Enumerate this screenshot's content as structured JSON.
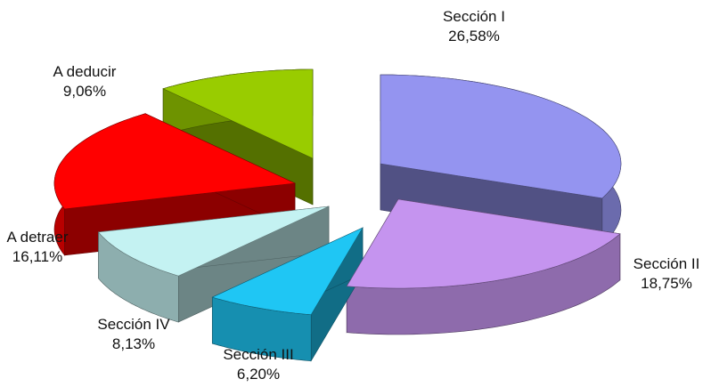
{
  "chart_data": {
    "type": "pie",
    "style": "3d-exploded",
    "slices": [
      {
        "name": "Sección I",
        "value_label": "26,58%",
        "value": 26.58,
        "color": "#9494f0"
      },
      {
        "name": "Sección II",
        "value_label": "18,75%",
        "value": 18.75,
        "color": "#c594ef"
      },
      {
        "name": "Sección III",
        "value_label": "6,20%",
        "value": 6.2,
        "color": "#1fc6f4"
      },
      {
        "name": "Sección IV",
        "value_label": "8,13%",
        "value": 8.13,
        "color": "#c4f2f2"
      },
      {
        "name": "A detraer",
        "value_label": "16,11%",
        "value": 16.11,
        "color": "#ff0000"
      },
      {
        "name": "A deducir",
        "value_label": "9,06%",
        "value": 9.06,
        "color": "#99cc00"
      }
    ]
  }
}
